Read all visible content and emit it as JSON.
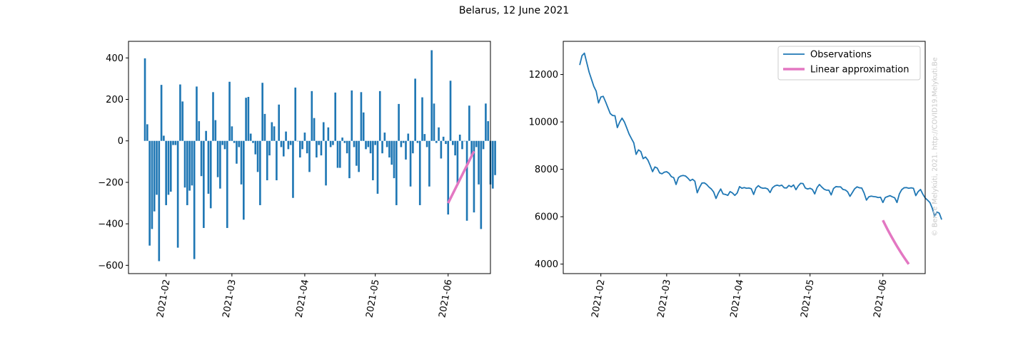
{
  "title": "Belarus, 12 June 2021",
  "watermark": "© Bence Melykúti, 2021. http://COVID19.Melykuti.Be",
  "colors": {
    "observations": "#1f77b4",
    "approximation": "#e377c2"
  },
  "chart_data": [
    {
      "type": "bar",
      "subtitle": "",
      "xlabel": "",
      "ylabel": "",
      "x_start": "2021-01-23",
      "x_end": "2021-06-12",
      "xlim": [
        "2021-01-16",
        "2021-06-19"
      ],
      "ylim": [
        -640,
        480
      ],
      "yticks": [
        -600,
        -400,
        -200,
        0,
        200,
        400
      ],
      "xticks": [
        "2021-02-01",
        "2021-03-01",
        "2021-04-01",
        "2021-05-01",
        "2021-06-01"
      ],
      "xtick_labels": [
        "2021-02",
        "2021-03",
        "2021-04",
        "2021-05",
        "2021-06"
      ],
      "values": [
        398,
        80,
        -505,
        -425,
        -340,
        -260,
        -580,
        270,
        25,
        -310,
        -260,
        -245,
        -20,
        -20,
        -515,
        272,
        190,
        -225,
        -310,
        -240,
        -215,
        -570,
        262,
        95,
        -170,
        -420,
        48,
        -255,
        -325,
        235,
        100,
        -175,
        -230,
        -20,
        -40,
        -420,
        285,
        70,
        -10,
        -110,
        -30,
        -210,
        -380,
        208,
        212,
        35,
        -10,
        -65,
        -150,
        -310,
        280,
        130,
        -190,
        -70,
        90,
        70,
        -190,
        175,
        -30,
        -75,
        45,
        -40,
        -20,
        -275,
        257,
        0,
        -80,
        -40,
        40,
        -60,
        -150,
        240,
        110,
        -80,
        -20,
        -70,
        90,
        -215,
        65,
        -30,
        -20,
        233,
        -130,
        -130,
        16,
        -10,
        -60,
        -180,
        243,
        -30,
        -120,
        -150,
        235,
        137,
        -40,
        -30,
        -60,
        -190,
        -20,
        -255,
        240,
        -60,
        40,
        -30,
        -80,
        -115,
        -180,
        -310,
        178,
        -30,
        -10,
        -90,
        35,
        -220,
        -60,
        300,
        -10,
        -310,
        210,
        33,
        -30,
        -220,
        437,
        180,
        -10,
        65,
        -85,
        20,
        -15,
        -355,
        290,
        -20,
        -70,
        -210,
        30,
        -40,
        0,
        -385,
        170,
        -70,
        -345,
        -30,
        -210,
        -425,
        -40,
        180,
        95,
        -210,
        -230,
        -165
      ],
      "approximation": {
        "name": "Linear approximation",
        "x": [
          "2021-06-01",
          "2021-06-12"
        ],
        "y": [
          -300,
          -50
        ]
      }
    },
    {
      "type": "line",
      "subtitle": "",
      "xlabel": "",
      "ylabel": "",
      "x_start": "2021-01-23",
      "x_end": "2021-06-12",
      "xlim": [
        "2021-01-16",
        "2021-06-19"
      ],
      "ylim": [
        3600,
        13400
      ],
      "yticks": [
        4000,
        6000,
        8000,
        10000,
        12000
      ],
      "xticks": [
        "2021-02-01",
        "2021-03-01",
        "2021-04-01",
        "2021-05-01",
        "2021-06-01"
      ],
      "xtick_labels": [
        "2021-02",
        "2021-03",
        "2021-04",
        "2021-05",
        "2021-06"
      ],
      "legend": {
        "position": "upper right",
        "entries": [
          "Observations",
          "Linear approximation"
        ]
      },
      "series": [
        {
          "name": "Observations",
          "values": [
            12400,
            12800,
            12900,
            12500,
            12100,
            11800,
            11500,
            11300,
            10800,
            11050,
            11080,
            10850,
            10600,
            10350,
            10270,
            10260,
            9760,
            9990,
            10160,
            10000,
            9750,
            9490,
            9300,
            9120,
            8630,
            8820,
            8750,
            8450,
            8520,
            8390,
            8160,
            7900,
            8100,
            8050,
            7850,
            7810,
            7880,
            7900,
            7830,
            7690,
            7650,
            7360,
            7650,
            7720,
            7740,
            7720,
            7630,
            7520,
            7580,
            7500,
            7010,
            7240,
            7420,
            7430,
            7360,
            7250,
            7170,
            7040,
            6770,
            7000,
            7170,
            6960,
            6940,
            6900,
            7060,
            7000,
            6900,
            7000,
            7270,
            7200,
            7230,
            7200,
            7210,
            7180,
            6940,
            7210,
            7310,
            7230,
            7200,
            7210,
            7170,
            7020,
            7220,
            7300,
            7330,
            7300,
            7330,
            7220,
            7210,
            7320,
            7260,
            7340,
            7140,
            7300,
            7410,
            7400,
            7210,
            7170,
            7200,
            7150,
            6960,
            7230,
            7360,
            7250,
            7160,
            7120,
            7120,
            6920,
            7190,
            7270,
            7260,
            7260,
            7150,
            7130,
            7050,
            6860,
            7020,
            7180,
            7260,
            7220,
            7210,
            7000,
            6700,
            6840,
            6870,
            6850,
            6840,
            6810,
            6820,
            6600,
            6810,
            6850,
            6890,
            6840,
            6800,
            6600,
            6960,
            7140,
            7220,
            7230,
            7200,
            7220,
            7200,
            6890,
            7060,
            7150,
            6950,
            6790,
            6700,
            6600,
            6360,
            6030,
            6200,
            6150,
            5880
          ]
        },
        {
          "name": "Linear approximation",
          "x": [
            "2021-06-01",
            "2021-06-12"
          ],
          "y": [
            5850,
            4000
          ]
        }
      ]
    }
  ]
}
